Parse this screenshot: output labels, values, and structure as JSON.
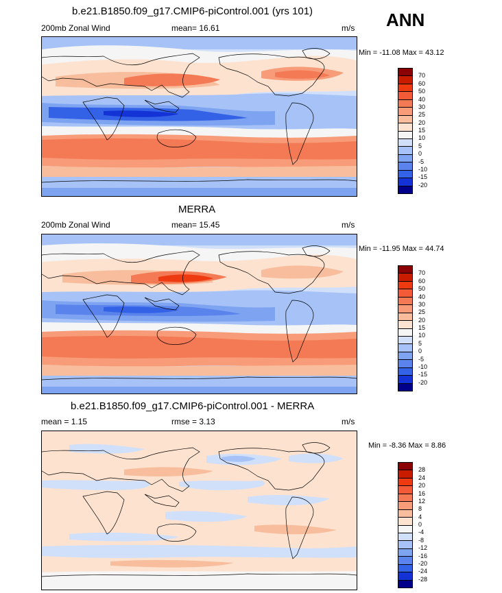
{
  "season": "ANN",
  "panels": [
    {
      "title": "b.e21.B1850.f09_g17.CMIP6-piControl.001 (yrs 101)",
      "left_label": "200mb Zonal Wind",
      "center_label": "mean=  16.61",
      "units": "m/s",
      "minmax": "Min = -11.08 Max =  43.12",
      "levels": [
        "70",
        "60",
        "50",
        "40",
        "30",
        "25",
        "20",
        "15",
        "10",
        "5",
        "0",
        "-5",
        "-10",
        "-15",
        "-20"
      ],
      "colors": [
        "#8b0000",
        "#c71c00",
        "#ee3a10",
        "#f25a38",
        "#f47a55",
        "#f79b78",
        "#f8bd9c",
        "#fde2d0",
        "#f5f5f5",
        "#d0e0fb",
        "#a6c2f7",
        "#7ea3f1",
        "#5a83ec",
        "#3462e6",
        "#1433d6",
        "#00008b"
      ]
    },
    {
      "title": "MERRA",
      "left_label": "200mb Zonal Wind",
      "center_label": "mean=  15.45",
      "units": "m/s",
      "minmax": "Min = -11.95 Max =  44.74",
      "levels": [
        "70",
        "60",
        "50",
        "40",
        "30",
        "25",
        "20",
        "15",
        "10",
        "5",
        "0",
        "-5",
        "-10",
        "-15",
        "-20"
      ],
      "colors": [
        "#8b0000",
        "#c71c00",
        "#ee3a10",
        "#f25a38",
        "#f47a55",
        "#f79b78",
        "#f8bd9c",
        "#fde2d0",
        "#f5f5f5",
        "#d0e0fb",
        "#a6c2f7",
        "#7ea3f1",
        "#5a83ec",
        "#3462e6",
        "#1433d6",
        "#00008b"
      ]
    },
    {
      "title": "b.e21.B1850.f09_g17.CMIP6-piControl.001 - MERRA",
      "left_label": "mean =   1.15",
      "center_label": "rmse =   3.13",
      "units": "m/s",
      "minmax": "Min =  -8.36 Max =   8.86",
      "levels": [
        "28",
        "24",
        "20",
        "16",
        "12",
        "8",
        "4",
        "0",
        "-4",
        "-8",
        "-12",
        "-16",
        "-20",
        "-24",
        "-28"
      ],
      "colors": [
        "#8b0000",
        "#c71c00",
        "#ee3a10",
        "#f25a38",
        "#f47a55",
        "#f79b78",
        "#f8bd9c",
        "#fde2d0",
        "#f5f5f5",
        "#d0e0fb",
        "#a6c2f7",
        "#7ea3f1",
        "#5a83ec",
        "#3462e6",
        "#1433d6",
        "#00008b"
      ]
    }
  ]
}
